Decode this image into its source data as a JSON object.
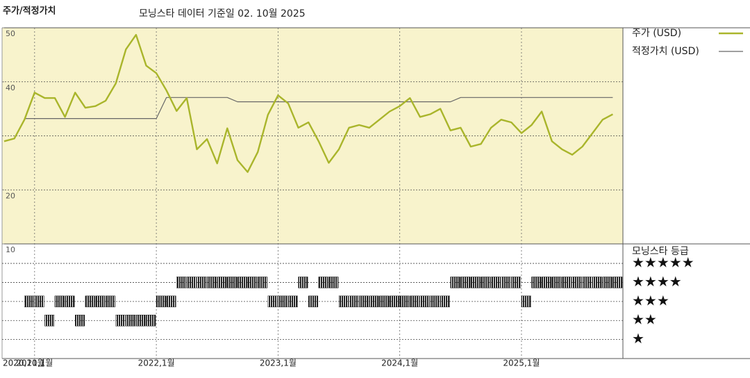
{
  "chart_data": {
    "type": "line",
    "title": "주가/적정가치",
    "subtitle": "모닝스타 데이터 기준일 02. 10월 2025",
    "x": [
      "2020-10",
      "2020-11",
      "2020-12",
      "2021-01",
      "2021-02",
      "2021-03",
      "2021-04",
      "2021-05",
      "2021-06",
      "2021-07",
      "2021-08",
      "2021-09",
      "2021-10",
      "2021-11",
      "2021-12",
      "2022-01",
      "2022-02",
      "2022-03",
      "2022-04",
      "2022-05",
      "2022-06",
      "2022-07",
      "2022-08",
      "2022-09",
      "2022-10",
      "2022-11",
      "2022-12",
      "2023-01",
      "2023-02",
      "2023-03",
      "2023-04",
      "2023-05",
      "2023-06",
      "2023-07",
      "2023-08",
      "2023-09",
      "2023-10",
      "2023-11",
      "2023-12",
      "2024-01",
      "2024-02",
      "2024-03",
      "2024-04",
      "2024-05",
      "2024-06",
      "2024-07",
      "2024-08",
      "2024-09",
      "2024-10",
      "2024-11",
      "2024-12",
      "2025-01",
      "2025-02",
      "2025-03",
      "2025-04",
      "2025-05",
      "2025-06",
      "2025-07",
      "2025-08",
      "2025-09",
      "2025-10"
    ],
    "series": [
      {
        "name": "주가 (USD)",
        "color": "#a9b52b",
        "width": 2.4,
        "values": [
          29,
          29.5,
          33,
          38,
          37,
          37,
          33.5,
          38,
          35.2,
          35.5,
          36.5,
          39.7,
          46,
          48.7,
          43,
          41.6,
          38.4,
          34.6,
          37,
          27.5,
          29.4,
          24.9,
          31.4,
          25.5,
          23.3,
          27,
          33.9,
          37.5,
          36,
          31.5,
          32.5,
          29,
          25,
          27.5,
          31.5,
          32,
          31.5,
          33,
          34.5,
          35.5,
          37,
          33.5,
          34,
          35,
          31,
          31.5,
          28,
          28.5,
          31.5,
          33,
          32.5,
          30.5,
          32,
          34.5,
          29,
          27.5,
          26.5,
          28,
          30.5,
          33,
          34
        ]
      },
      {
        "name": "적정가치 (USD)",
        "color": "#666666",
        "width": 1.2,
        "values": [
          null,
          null,
          33.2,
          33.2,
          33.2,
          33.2,
          33.2,
          33.2,
          33.2,
          33.2,
          33.2,
          33.2,
          33.2,
          33.2,
          33.2,
          33.2,
          37.1,
          37.1,
          37.1,
          37.1,
          37.1,
          37.1,
          37.1,
          36.3,
          36.3,
          36.3,
          36.3,
          36.3,
          36.3,
          36.3,
          36.3,
          36.3,
          36.3,
          36.3,
          36.3,
          36.3,
          36.3,
          36.3,
          36.3,
          36.3,
          36.3,
          36.3,
          36.3,
          36.3,
          36.3,
          37.1,
          37.1,
          37.1,
          37.1,
          37.1,
          37.1,
          37.1,
          37.1,
          37.1,
          37.1,
          37.1,
          37.1,
          37.1,
          37.1,
          37.1,
          37.1
        ]
      }
    ],
    "xlim": [
      "2020-10",
      "2025-11"
    ],
    "xticks": [
      {
        "value": "2020-10",
        "label": "2020,10월"
      },
      {
        "value": "2021-01",
        "label": "2021,1월"
      },
      {
        "value": "2022-01",
        "label": "2022,1월"
      },
      {
        "value": "2023-01",
        "label": "2023,1월"
      },
      {
        "value": "2024-01",
        "label": "2024,1월"
      },
      {
        "value": "2025-01",
        "label": "2025,1월"
      }
    ],
    "ylim": [
      10,
      50
    ],
    "yticks": [
      10,
      20,
      40,
      50
    ],
    "ygrid": [
      20,
      30,
      40
    ],
    "background": "#f8f3cc",
    "rating": {
      "title": "모닝스타 등급",
      "levels": [
        {
          "value": 5,
          "label": "★★★★★"
        },
        {
          "value": 4,
          "label": "★★★★"
        },
        {
          "value": 3,
          "label": "★★★"
        },
        {
          "value": 2,
          "label": "★★"
        },
        {
          "value": 1,
          "label": "★"
        }
      ],
      "values": [
        null,
        null,
        3,
        3,
        2,
        3,
        3,
        2,
        3,
        3,
        3,
        2,
        2,
        2,
        2,
        3,
        3,
        4,
        4,
        4,
        4,
        4,
        4,
        4,
        4,
        4,
        3,
        3,
        3,
        4,
        3,
        4,
        4,
        3,
        3,
        3,
        3,
        3,
        3,
        3,
        3,
        3,
        3,
        3,
        4,
        4,
        4,
        4,
        4,
        4,
        4,
        3,
        4,
        4,
        4,
        4,
        4,
        4,
        4,
        4,
        4
      ]
    }
  }
}
